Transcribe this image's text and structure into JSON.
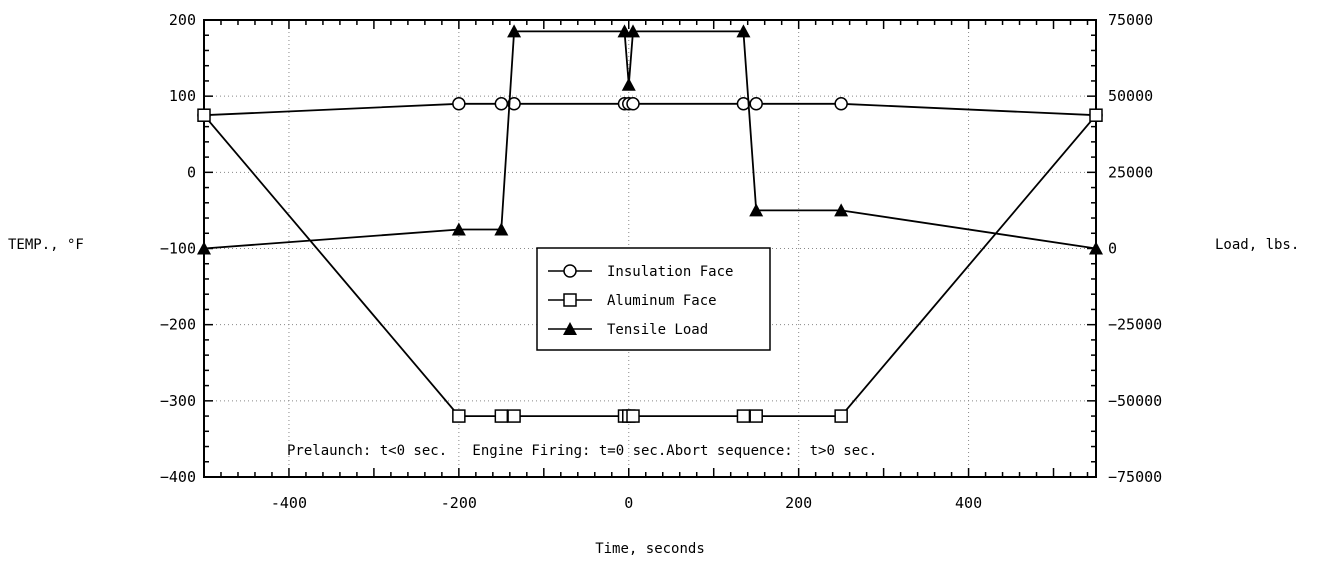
{
  "chart_data": {
    "type": "line",
    "title": "",
    "xlabel": "Time, seconds",
    "ylabel": "TEMP., °F",
    "y2label": "Load, lbs.",
    "xlim": [
      -500,
      550
    ],
    "ylim": [
      -400,
      200
    ],
    "y2lim": [
      -75000,
      75000
    ],
    "x_ticks": [
      -400,
      -200,
      0,
      200,
      400
    ],
    "y_ticks": [
      -400,
      -300,
      -200,
      -100,
      0,
      100,
      200
    ],
    "y2_ticks": [
      -75000,
      -50000,
      -25000,
      0,
      25000,
      50000,
      75000
    ],
    "grid": true,
    "legend_position": "center",
    "annotation": "Prelaunch: t<0 sec.   Engine Firing: t=0 sec.Abort sequence:  t>0 sec.",
    "series": [
      {
        "name": "Insulation Face",
        "axis": "left",
        "marker": "circle",
        "x": [
          -500,
          -200,
          -150,
          -135,
          -5,
          0,
          5,
          135,
          150,
          250,
          550
        ],
        "y": [
          75,
          90,
          90,
          90,
          90,
          90,
          90,
          90,
          90,
          90,
          75
        ]
      },
      {
        "name": "Aluminum Face",
        "axis": "left",
        "marker": "square",
        "x": [
          -500,
          -200,
          -150,
          -135,
          -5,
          0,
          5,
          135,
          150,
          250,
          550
        ],
        "y": [
          75,
          -320,
          -320,
          -320,
          -320,
          -320,
          -320,
          -320,
          -320,
          -320,
          75
        ]
      },
      {
        "name": "Tensile Load",
        "axis": "right",
        "marker": "triangle",
        "x": [
          -500,
          -200,
          -150,
          -135,
          -5,
          0,
          5,
          135,
          150,
          250,
          550
        ],
        "y": [
          0,
          6250,
          6250,
          71250,
          71250,
          53750,
          71250,
          71250,
          12500,
          12500,
          0
        ]
      }
    ]
  }
}
